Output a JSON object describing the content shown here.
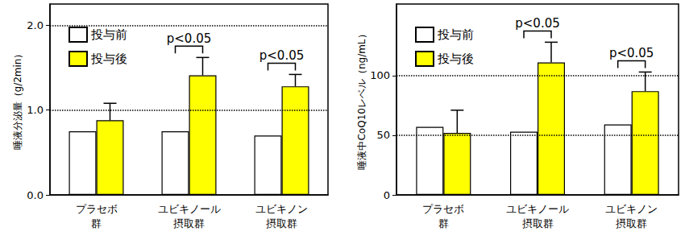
{
  "chart_data": [
    {
      "type": "bar",
      "y_label": "唾液分泌量（g/2min）",
      "categories": [
        "プラセボ\n群",
        "ユビキノール\n摂取群",
        "ユビキノン\n摂取群"
      ],
      "series": [
        {
          "name": "投与前",
          "color": "#ffffff",
          "values": [
            0.75,
            0.75,
            0.7
          ]
        },
        {
          "name": "投与後",
          "color": "#ffff00",
          "values": [
            0.88,
            1.41,
            1.28
          ],
          "errors": [
            0.2,
            0.21,
            0.14
          ]
        }
      ],
      "ylim": [
        0,
        2.25
      ],
      "yticks": [
        {
          "value": 0,
          "label": "0.0"
        },
        {
          "value": 1,
          "label": "1.0"
        },
        {
          "value": 2,
          "label": "2.0"
        }
      ],
      "grid": true,
      "legend": "upper left",
      "annotations": [
        {
          "text": "p<0.05",
          "category": "ユビキノール\n摂取群"
        },
        {
          "text": "p<0.05",
          "category": "ユビキノン\n摂取群"
        }
      ]
    },
    {
      "type": "bar",
      "y_label": "唾液中CoQ10レベル（ng/mL）",
      "categories": [
        "プラセボ\n群",
        "ユビキノール\n摂取群",
        "ユビキノン\n摂取群"
      ],
      "series": [
        {
          "name": "投与前",
          "color": "#ffffff",
          "values": [
            57,
            53,
            59
          ]
        },
        {
          "name": "投与後",
          "color": "#ffff00",
          "values": [
            52,
            111,
            87
          ],
          "errors": [
            19,
            17,
            16
          ]
        }
      ],
      "ylim": [
        0,
        160
      ],
      "yticks": [
        0,
        50,
        100
      ],
      "grid": true,
      "legend": "upper left",
      "annotations": [
        {
          "text": "p<0.05",
          "category": "ユビキノール\n摂取群"
        },
        {
          "text": "p<0.05",
          "category": "ユビキノン\n摂取群"
        }
      ]
    }
  ]
}
